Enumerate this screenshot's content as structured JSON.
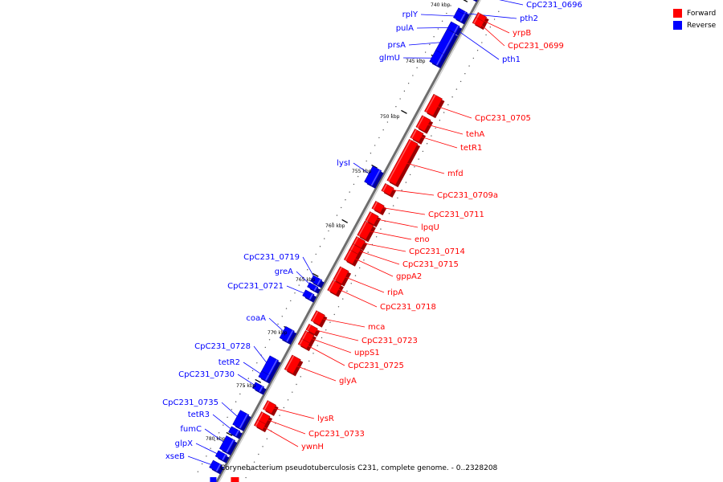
{
  "legend": {
    "forward_label": "Forward",
    "reverse_label": "Reverse",
    "forward_color": "#ff0000",
    "reverse_color": "#0000ff"
  },
  "caption": "Corynebacterium pseudotuberculosis C231, complete genome. - 0..2328208",
  "ticks": [
    "740 kbp",
    "745 kbp",
    "750 kbp",
    "755 kbp",
    "760 kbp",
    "765 kbp",
    "770 kbp",
    "775 kbp",
    "780 kbp"
  ],
  "genes_reverse": [
    "CpC231_0696",
    "pth2",
    "pth1",
    "rplY",
    "pulA",
    "prsA",
    "glmU",
    "lysI",
    "CpC231_0719",
    "greA",
    "CpC231_0721",
    "coaA",
    "CpC231_0728",
    "tetR2",
    "CpC231_0730",
    "CpC231_0735",
    "tetR3",
    "fumC",
    "glpX",
    "xseB"
  ],
  "genes_forward": [
    "yrpB",
    "CpC231_0699",
    "CpC231_0705",
    "tehA",
    "tetR1",
    "mfd",
    "CpC231_0709a",
    "CpC231_0711",
    "lpqU",
    "eno",
    "CpC231_0714",
    "CpC231_0715",
    "gppA2",
    "ripA",
    "CpC231_0718",
    "mca",
    "CpC231_0723",
    "uppS1",
    "CpC231_0725",
    "glyA",
    "lysR",
    "CpC231_0733",
    "ywnH"
  ]
}
